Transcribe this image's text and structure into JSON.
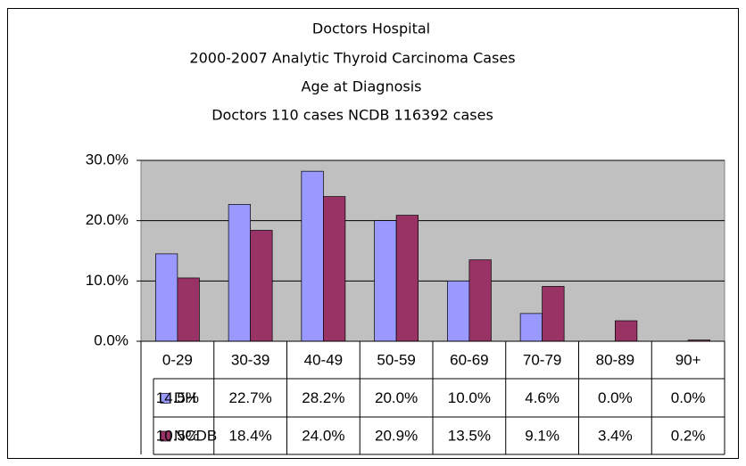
{
  "chart_data": {
    "type": "bar",
    "title": "Doctors Hospital",
    "subtitle": [
      "2000-2007 Analytic Thyroid Carcinoma Cases",
      "Age at Diagnosis",
      "Doctors 110 cases    NCDB 116392 cases"
    ],
    "categories": [
      "0-29",
      "30-39",
      "40-49",
      "50-59",
      "60-69",
      "70-79",
      "80-89",
      "90+"
    ],
    "series": [
      {
        "name": "DH",
        "color": "#9999ff",
        "values": [
          14.5,
          22.7,
          28.2,
          20.0,
          10.0,
          4.6,
          0.0,
          0.0
        ],
        "value_labels": [
          "14.5%",
          "22.7%",
          "28.2%",
          "20.0%",
          "10.0%",
          "4.6%",
          "0.0%",
          "0.0%"
        ]
      },
      {
        "name": "NCDB",
        "color": "#993366",
        "values": [
          10.5,
          18.4,
          24.0,
          20.9,
          13.5,
          9.1,
          3.4,
          0.2
        ],
        "value_labels": [
          "10.5%",
          "18.4%",
          "24.0%",
          "20.9%",
          "13.5%",
          "9.1%",
          "3.4%",
          "0.2%"
        ]
      }
    ],
    "ylim": [
      0,
      30
    ],
    "yticks": [
      {
        "value": 0,
        "label": "0.0%"
      },
      {
        "value": 10,
        "label": "10.0%"
      },
      {
        "value": 20,
        "label": "20.0%"
      },
      {
        "value": 30,
        "label": "30.0%"
      }
    ],
    "grid": true
  }
}
